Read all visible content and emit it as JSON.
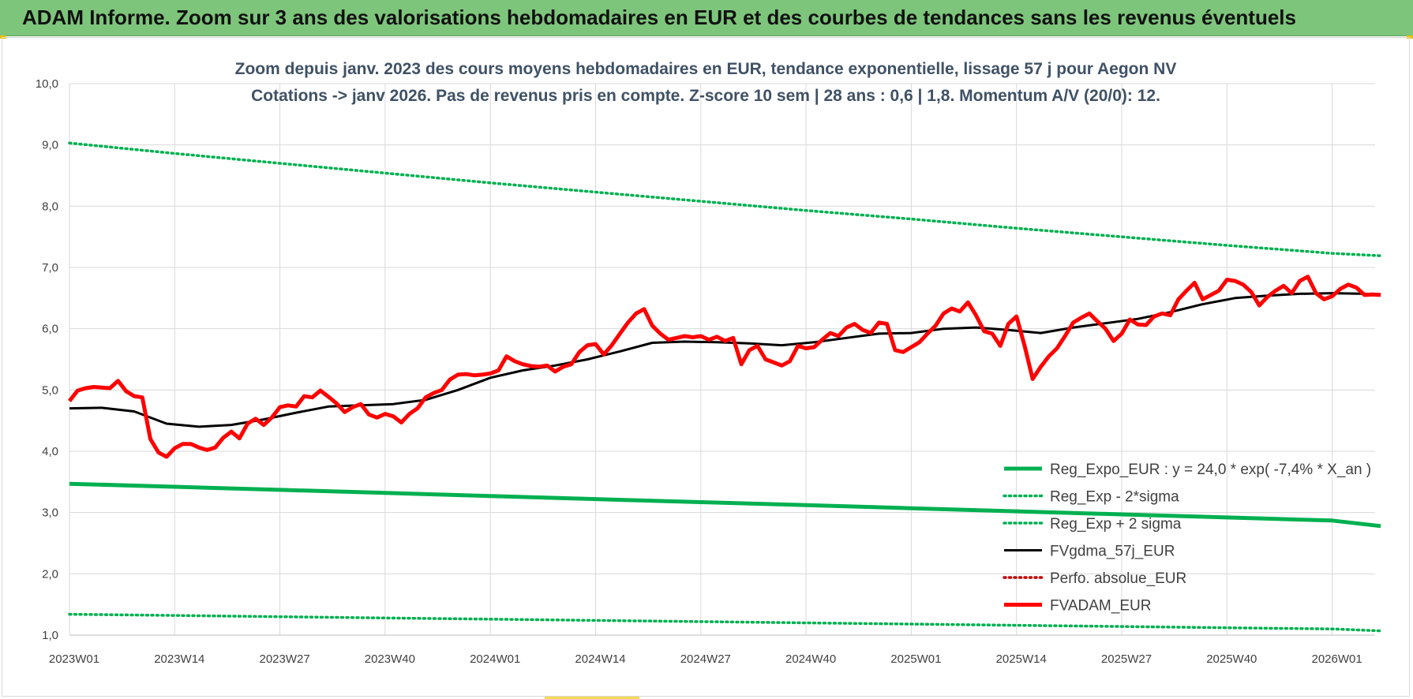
{
  "header": {
    "title": "ADAM Informe. Zoom sur 3 ans des valorisations hebdomadaires en EUR et des courbes de tendances sans les revenus éventuels"
  },
  "colors": {
    "header_bg": "#7dc57b",
    "reg_expo": "#00b050",
    "fvgdma": "#000000",
    "perfo": "#c00000",
    "fvadam": "#ff0000",
    "subtitle": "#3f5166",
    "grid": "#d9d9d9"
  },
  "chart_data": {
    "type": "line",
    "title_lines": [
      "Zoom depuis janv. 2023 des cours moyens hebdomadaires en EUR, tendance exponentielle, lissage 57 j pour Aegon NV",
      "Cotations -> janv 2026. Pas de revenus pris en compte. Z-score 10 sem | 28 ans : 0,6 | 1,8. Momentum A/V (20/0): 12."
    ],
    "ylim": [
      1.0,
      10.0
    ],
    "y_ticks": [
      "1,0",
      "2,0",
      "3,0",
      "4,0",
      "5,0",
      "6,0",
      "7,0",
      "8,0",
      "9,0",
      "10,0"
    ],
    "x_tick_labels": [
      "2023W01",
      "2023W14",
      "2023W27",
      "2023W40",
      "2024W01",
      "2024W14",
      "2024W27",
      "2024W40",
      "2025W01",
      "2025W14",
      "2025W27",
      "2025W40",
      "2026W01"
    ],
    "x_tick_step_weeks": 13,
    "n_weeks": 163,
    "grid": true,
    "legend_position": "bottom-right",
    "series": [
      {
        "name": "Reg_Expo_EUR : y = 24,0 * exp( -7,4% *  X_an )",
        "style": "solid-thick",
        "color": "#00b050",
        "values_at_ticks": [
          3.47,
          3.42,
          3.37,
          3.32,
          3.27,
          3.22,
          3.17,
          3.12,
          3.07,
          3.02,
          2.97,
          2.92,
          2.87
        ],
        "end_value": 2.78
      },
      {
        "name": "Reg_Exp - 2*sigma",
        "style": "dotted",
        "color": "#00b050",
        "values_at_ticks": [
          1.34,
          1.32,
          1.3,
          1.28,
          1.26,
          1.24,
          1.22,
          1.2,
          1.18,
          1.16,
          1.14,
          1.12,
          1.1
        ],
        "end_value": 1.07
      },
      {
        "name": "Reg_Exp + 2 sigma",
        "style": "dotted",
        "color": "#00b050",
        "values_at_ticks": [
          9.03,
          8.86,
          8.7,
          8.54,
          8.38,
          8.23,
          8.08,
          7.93,
          7.79,
          7.64,
          7.5,
          7.36,
          7.23
        ],
        "end_value": 7.19
      },
      {
        "name": "FVgdma_57j_EUR",
        "style": "solid",
        "color": "#000000",
        "points": [
          [
            0,
            4.7
          ],
          [
            4,
            4.71
          ],
          [
            8,
            4.65
          ],
          [
            12,
            4.45
          ],
          [
            16,
            4.4
          ],
          [
            20,
            4.43
          ],
          [
            24,
            4.52
          ],
          [
            28,
            4.63
          ],
          [
            32,
            4.73
          ],
          [
            36,
            4.75
          ],
          [
            40,
            4.77
          ],
          [
            44,
            4.84
          ],
          [
            48,
            5.0
          ],
          [
            52,
            5.2
          ],
          [
            56,
            5.32
          ],
          [
            60,
            5.4
          ],
          [
            64,
            5.5
          ],
          [
            68,
            5.63
          ],
          [
            72,
            5.77
          ],
          [
            76,
            5.79
          ],
          [
            80,
            5.78
          ],
          [
            84,
            5.76
          ],
          [
            88,
            5.73
          ],
          [
            92,
            5.78
          ],
          [
            96,
            5.85
          ],
          [
            100,
            5.92
          ],
          [
            104,
            5.93
          ],
          [
            108,
            6.0
          ],
          [
            112,
            6.02
          ],
          [
            116,
            5.98
          ],
          [
            120,
            5.93
          ],
          [
            124,
            6.02
          ],
          [
            128,
            6.09
          ],
          [
            132,
            6.16
          ],
          [
            136,
            6.27
          ],
          [
            140,
            6.4
          ],
          [
            144,
            6.5
          ],
          [
            148,
            6.54
          ],
          [
            152,
            6.57
          ],
          [
            156,
            6.58
          ],
          [
            160,
            6.57
          ],
          [
            162,
            6.56
          ]
        ]
      },
      {
        "name": "Perfo. absolue_EUR",
        "style": "dotted",
        "color": "#c00000",
        "points": []
      },
      {
        "name": "FVADAM_EUR",
        "style": "solid-thick",
        "color": "#ff0000",
        "points": [
          [
            0,
            4.82
          ],
          [
            1,
            4.99
          ],
          [
            2,
            5.03
          ],
          [
            3,
            5.05
          ],
          [
            4,
            5.04
          ],
          [
            5,
            5.03
          ],
          [
            6,
            5.15
          ],
          [
            7,
            4.98
          ],
          [
            8,
            4.9
          ],
          [
            9,
            4.88
          ],
          [
            10,
            4.2
          ],
          [
            11,
            3.98
          ],
          [
            12,
            3.91
          ],
          [
            13,
            4.05
          ],
          [
            14,
            4.12
          ],
          [
            15,
            4.12
          ],
          [
            16,
            4.06
          ],
          [
            17,
            4.02
          ],
          [
            18,
            4.06
          ],
          [
            19,
            4.22
          ],
          [
            20,
            4.32
          ],
          [
            21,
            4.21
          ],
          [
            22,
            4.45
          ],
          [
            23,
            4.53
          ],
          [
            24,
            4.43
          ],
          [
            25,
            4.55
          ],
          [
            26,
            4.72
          ],
          [
            27,
            4.75
          ],
          [
            28,
            4.73
          ],
          [
            29,
            4.9
          ],
          [
            30,
            4.88
          ],
          [
            31,
            4.99
          ],
          [
            32,
            4.89
          ],
          [
            33,
            4.78
          ],
          [
            34,
            4.64
          ],
          [
            35,
            4.72
          ],
          [
            36,
            4.77
          ],
          [
            37,
            4.6
          ],
          [
            38,
            4.55
          ],
          [
            39,
            4.61
          ],
          [
            40,
            4.57
          ],
          [
            41,
            4.47
          ],
          [
            42,
            4.61
          ],
          [
            43,
            4.7
          ],
          [
            44,
            4.88
          ],
          [
            45,
            4.95
          ],
          [
            46,
            5.0
          ],
          [
            47,
            5.17
          ],
          [
            48,
            5.25
          ],
          [
            49,
            5.26
          ],
          [
            50,
            5.24
          ],
          [
            51,
            5.25
          ],
          [
            52,
            5.27
          ],
          [
            53,
            5.32
          ],
          [
            54,
            5.55
          ],
          [
            55,
            5.47
          ],
          [
            56,
            5.42
          ],
          [
            57,
            5.39
          ],
          [
            58,
            5.38
          ],
          [
            59,
            5.4
          ],
          [
            60,
            5.3
          ],
          [
            61,
            5.38
          ],
          [
            62,
            5.42
          ],
          [
            63,
            5.62
          ],
          [
            64,
            5.73
          ],
          [
            65,
            5.75
          ],
          [
            66,
            5.58
          ],
          [
            67,
            5.73
          ],
          [
            68,
            5.92
          ],
          [
            69,
            6.1
          ],
          [
            70,
            6.25
          ],
          [
            71,
            6.32
          ],
          [
            72,
            6.05
          ],
          [
            73,
            5.92
          ],
          [
            74,
            5.82
          ],
          [
            75,
            5.85
          ],
          [
            76,
            5.88
          ],
          [
            77,
            5.86
          ],
          [
            78,
            5.88
          ],
          [
            79,
            5.82
          ],
          [
            80,
            5.87
          ],
          [
            81,
            5.8
          ],
          [
            82,
            5.85
          ],
          [
            83,
            5.42
          ],
          [
            84,
            5.65
          ],
          [
            85,
            5.72
          ],
          [
            86,
            5.5
          ],
          [
            87,
            5.45
          ],
          [
            88,
            5.4
          ],
          [
            89,
            5.47
          ],
          [
            90,
            5.72
          ],
          [
            91,
            5.68
          ],
          [
            92,
            5.7
          ],
          [
            93,
            5.82
          ],
          [
            94,
            5.93
          ],
          [
            95,
            5.88
          ],
          [
            96,
            6.02
          ],
          [
            97,
            6.08
          ],
          [
            98,
            5.98
          ],
          [
            99,
            5.93
          ],
          [
            100,
            6.1
          ],
          [
            101,
            6.08
          ],
          [
            102,
            5.65
          ],
          [
            103,
            5.62
          ],
          [
            104,
            5.7
          ],
          [
            105,
            5.78
          ],
          [
            106,
            5.92
          ],
          [
            107,
            6.05
          ],
          [
            108,
            6.25
          ],
          [
            109,
            6.33
          ],
          [
            110,
            6.28
          ],
          [
            111,
            6.43
          ],
          [
            112,
            6.22
          ],
          [
            113,
            5.96
          ],
          [
            114,
            5.92
          ],
          [
            115,
            5.72
          ],
          [
            116,
            6.08
          ],
          [
            117,
            6.2
          ],
          [
            118,
            5.72
          ],
          [
            119,
            5.18
          ],
          [
            120,
            5.38
          ],
          [
            121,
            5.55
          ],
          [
            122,
            5.68
          ],
          [
            123,
            5.88
          ],
          [
            124,
            6.1
          ],
          [
            125,
            6.18
          ],
          [
            126,
            6.25
          ],
          [
            127,
            6.12
          ],
          [
            128,
            6.0
          ],
          [
            129,
            5.8
          ],
          [
            130,
            5.92
          ],
          [
            131,
            6.15
          ],
          [
            132,
            6.07
          ],
          [
            133,
            6.06
          ],
          [
            134,
            6.2
          ],
          [
            135,
            6.25
          ],
          [
            136,
            6.22
          ],
          [
            137,
            6.48
          ],
          [
            138,
            6.62
          ],
          [
            139,
            6.75
          ],
          [
            140,
            6.48
          ],
          [
            141,
            6.55
          ],
          [
            142,
            6.62
          ],
          [
            143,
            6.8
          ],
          [
            144,
            6.78
          ],
          [
            145,
            6.72
          ],
          [
            146,
            6.6
          ],
          [
            147,
            6.38
          ],
          [
            148,
            6.52
          ],
          [
            149,
            6.62
          ],
          [
            150,
            6.7
          ],
          [
            151,
            6.58
          ],
          [
            152,
            6.78
          ],
          [
            153,
            6.85
          ],
          [
            154,
            6.58
          ],
          [
            155,
            6.48
          ],
          [
            156,
            6.53
          ],
          [
            157,
            6.65
          ],
          [
            158,
            6.72
          ],
          [
            159,
            6.67
          ],
          [
            160,
            6.55
          ],
          [
            161,
            6.56
          ],
          [
            162,
            6.55
          ]
        ]
      }
    ]
  }
}
